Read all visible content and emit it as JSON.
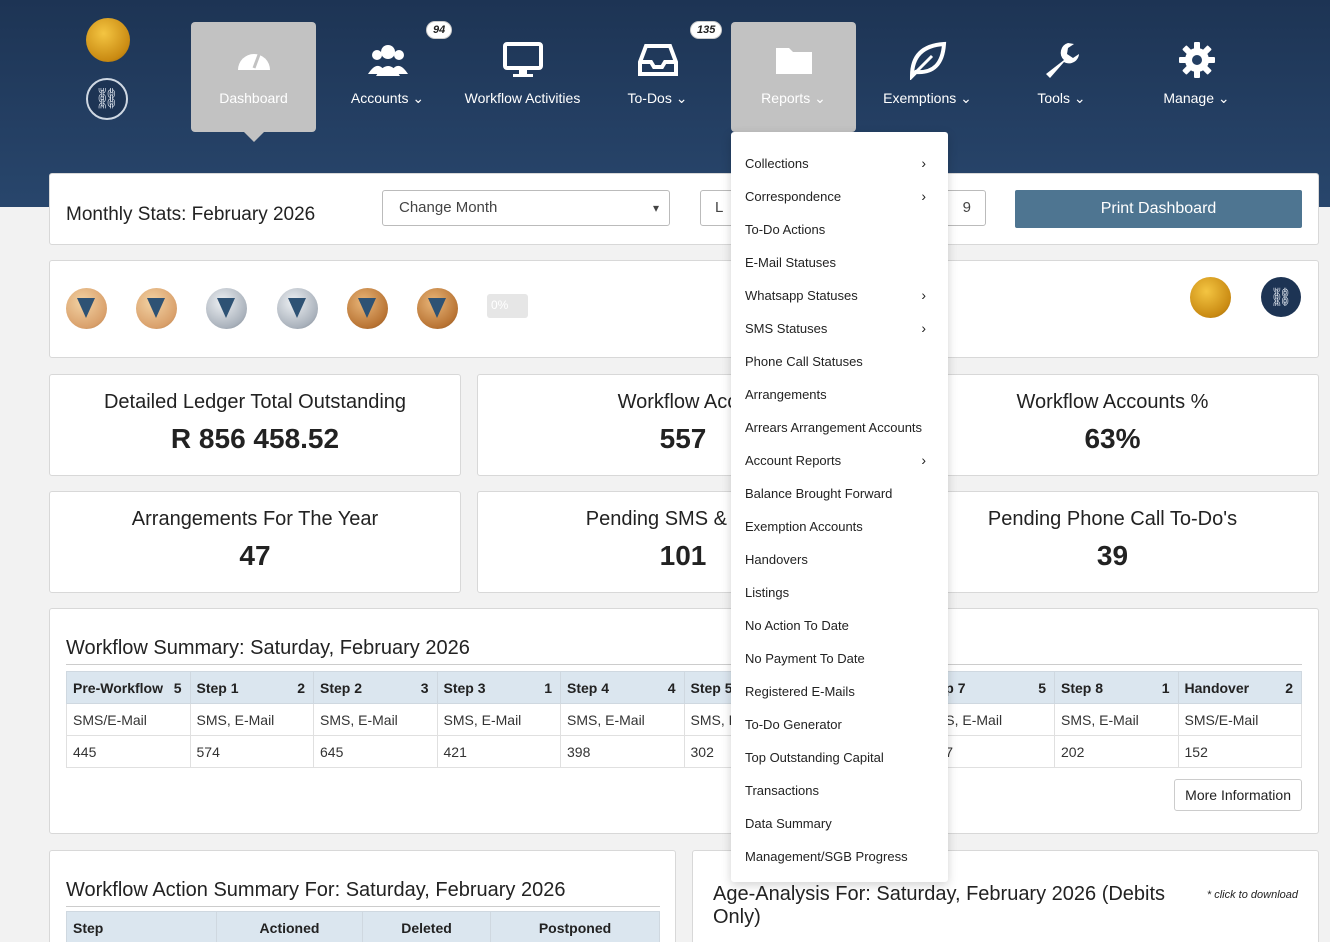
{
  "nav": {
    "items": [
      {
        "label": "Dashboard",
        "icon": "gauge-icon"
      },
      {
        "label": "Accounts",
        "caret": "⌄",
        "icon": "users-icon",
        "badge": "94"
      },
      {
        "label": "Workflow Activities",
        "icon": "monitor-icon"
      },
      {
        "label": "To-Dos",
        "caret": "⌄",
        "icon": "inbox-icon",
        "badge": "135"
      },
      {
        "label": "Reports",
        "caret": "⌄",
        "icon": "folder-icon"
      },
      {
        "label": "Exemptions",
        "caret": "⌄",
        "icon": "leaf-icon"
      },
      {
        "label": "Tools",
        "caret": "⌄",
        "icon": "wrench-icon"
      },
      {
        "label": "Manage",
        "caret": "⌄",
        "icon": "gear-icon"
      }
    ]
  },
  "stats": {
    "title": "Monthly Stats: February 2026",
    "select_value": "Change Month",
    "partial_left": "L",
    "partial_right": "9",
    "print_label": "Print Dashboard"
  },
  "progress": {
    "value": 0,
    "label": "0%"
  },
  "metrics": [
    {
      "title": "Detailed Ledger Total Outstanding",
      "value": "R 856 458.52"
    },
    {
      "title": "Workflow Acco",
      "value": "557"
    },
    {
      "title": "Workflow Accounts %",
      "value": "63%"
    },
    {
      "title": "Arrangements For The Year",
      "value": "47"
    },
    {
      "title": "Pending SMS & E-Ma",
      "value": "101"
    },
    {
      "title": "Pending Phone Call To-Do's",
      "value": "39"
    }
  ],
  "workflow": {
    "title": "Workflow Summary: Saturday, February 2026",
    "columns": [
      {
        "name": "Pre-Workflow",
        "count": "5",
        "type": "SMS/E-Mail",
        "value": "445"
      },
      {
        "name": "Step 1",
        "count": "2",
        "type": "SMS, E-Mail",
        "value": "574"
      },
      {
        "name": "Step 2",
        "count": "3",
        "type": "SMS, E-Mail",
        "value": "645"
      },
      {
        "name": "Step 3",
        "count": "1",
        "type": "SMS, E-Mail",
        "value": "421"
      },
      {
        "name": "Step 4",
        "count": "4",
        "type": "SMS, E-Mail",
        "value": "398"
      },
      {
        "name": "Step 5",
        "count": "",
        "type": "SMS, E",
        "value": "302"
      },
      {
        "name": "",
        "count": "",
        "type": "",
        "value": ""
      },
      {
        "name": "ep 7",
        "count": "5",
        "type": "/IS, E-Mail",
        "value": "77"
      },
      {
        "name": "Step 8",
        "count": "1",
        "type": "SMS, E-Mail",
        "value": "202"
      },
      {
        "name": "Handover",
        "count": "2",
        "type": "SMS/E-Mail",
        "value": "152"
      }
    ],
    "more_label": "More Information"
  },
  "action_summary": {
    "title": "Workflow Action Summary For: Saturday, February 2026",
    "headers": [
      "Step",
      "Actioned",
      "Deleted",
      "Postponed"
    ]
  },
  "age_analysis": {
    "title": "Age-Analysis For: Saturday, February 2026 (Debits Only)",
    "note": "* click to download"
  },
  "reports_menu": [
    {
      "label": "Collections",
      "sub": "›"
    },
    {
      "label": "Correspondence",
      "sub": "›"
    },
    {
      "label": "To-Do Actions",
      "sub": ""
    },
    {
      "label": "E-Mail Statuses",
      "sub": ""
    },
    {
      "label": "Whatsapp Statuses",
      "sub": "›"
    },
    {
      "label": "SMS Statuses",
      "sub": "›"
    },
    {
      "label": "Phone Call Statuses",
      "sub": ""
    },
    {
      "label": "Arrangements",
      "sub": ""
    },
    {
      "label": "Arrears Arrangement Accounts",
      "sub": ""
    },
    {
      "label": "Account Reports",
      "sub": "›"
    },
    {
      "label": "Balance Brought Forward",
      "sub": ""
    },
    {
      "label": "Exemption Accounts",
      "sub": ""
    },
    {
      "label": "Handovers",
      "sub": ""
    },
    {
      "label": "Listings",
      "sub": ""
    },
    {
      "label": "No Action To Date",
      "sub": ""
    },
    {
      "label": "No Payment To Date",
      "sub": ""
    },
    {
      "label": "Registered E-Mails",
      "sub": ""
    },
    {
      "label": "To-Do Generator",
      "sub": ""
    },
    {
      "label": "Top Outstanding Capital",
      "sub": ""
    },
    {
      "label": "Transactions",
      "sub": ""
    },
    {
      "label": "Data Summary",
      "sub": ""
    },
    {
      "label": "Management/SGB Progress",
      "sub": ""
    }
  ]
}
